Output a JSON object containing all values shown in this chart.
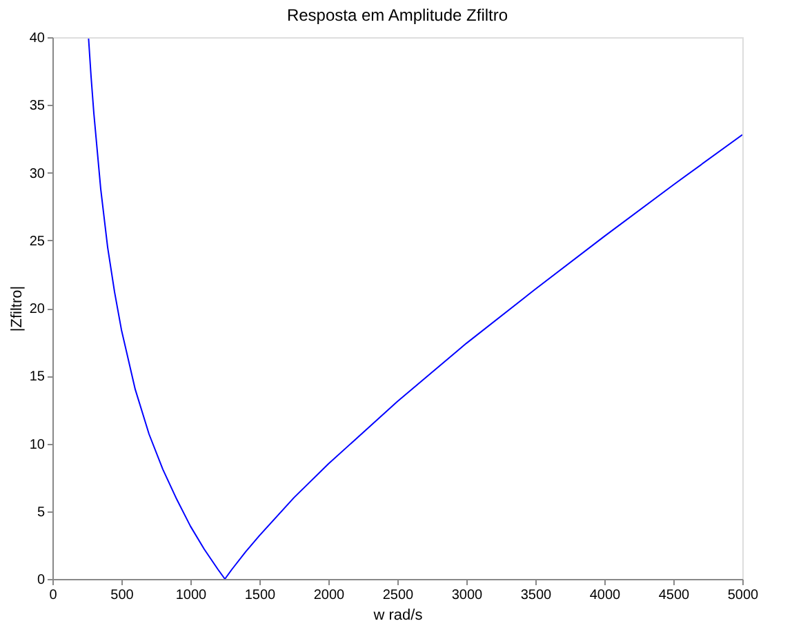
{
  "chart_data": {
    "type": "line",
    "title": "Resposta em Amplitude Zfiltro",
    "xlabel": "w rad/s",
    "ylabel": "|Zfiltro|",
    "x": [
      262,
      280,
      300,
      350,
      400,
      450,
      500,
      600,
      700,
      800,
      900,
      1000,
      1100,
      1200,
      1250,
      1300,
      1400,
      1500,
      1750,
      2000,
      2500,
      3000,
      3500,
      4000,
      4500,
      5000
    ],
    "series": [
      {
        "color": "#0000ff",
        "values": [
          39.9,
          37.1,
          34.4,
          28.8,
          24.5,
          21.2,
          18.4,
          14.0,
          10.7,
          8.1,
          5.9,
          3.9,
          2.2,
          0.7,
          0,
          0.7,
          2.0,
          3.2,
          6.0,
          8.5,
          13.1,
          17.4,
          21.4,
          25.3,
          29.1,
          32.8
        ]
      }
    ],
    "xlim": [
      0,
      5000
    ],
    "xticks": [
      0,
      500,
      1000,
      1500,
      2000,
      2500,
      3000,
      3500,
      4000,
      4500,
      5000
    ],
    "ylim": [
      0,
      40
    ],
    "yticks": [
      0,
      5,
      10,
      15,
      20,
      25,
      30,
      35,
      40
    ],
    "grid": false,
    "line_style": "solid",
    "marker": "none"
  }
}
